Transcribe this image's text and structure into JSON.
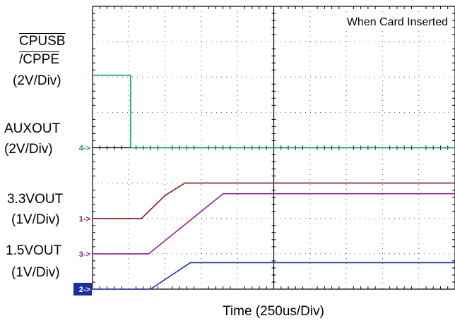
{
  "chart_data": {
    "type": "line",
    "title": "When Card Inserted",
    "xlabel": "Time (250us/Div)",
    "x_divisions": 10,
    "y_divisions": 8,
    "x_unit_per_div": "250us",
    "grid": true,
    "signals": [
      {
        "id": "ch4",
        "name_line1": "CPUSB",
        "name_line2": "/CPPE",
        "scale": "(2V/Div)",
        "marker": "4->",
        "color": "#12a05a",
        "ground_div": 4.0,
        "x": [
          0.0,
          1.05,
          1.05,
          10.0
        ],
        "y": [
          2.05,
          2.05,
          0.0,
          0.0
        ]
      },
      {
        "id": "ch1",
        "name_line1": "AUXOUT",
        "scale": "(2V/Div)",
        "marker": "1->",
        "color": "#8b1a1a",
        "ground_div": 2.0,
        "x": [
          0.0,
          1.35,
          2.0,
          2.55,
          10.0
        ],
        "y": [
          0.0,
          0.0,
          0.65,
          1.0,
          1.0
        ]
      },
      {
        "id": "ch3",
        "name_line1": "3.3VOUT",
        "scale": "(1V/Div)",
        "marker": "3->",
        "color": "#8e1f8e",
        "ground_div": 1.0,
        "x": [
          0.0,
          1.55,
          3.6,
          10.0
        ],
        "y": [
          0.0,
          0.0,
          1.7,
          1.7
        ]
      },
      {
        "id": "ch2",
        "name_line1": "1.5VOUT",
        "scale": "(1V/Div)",
        "marker": "2->",
        "color": "#1c2d9e",
        "ground_div": 0.0,
        "x": [
          0.0,
          1.6,
          2.7,
          10.0
        ],
        "y": [
          0.0,
          0.0,
          0.75,
          0.75
        ]
      }
    ]
  }
}
